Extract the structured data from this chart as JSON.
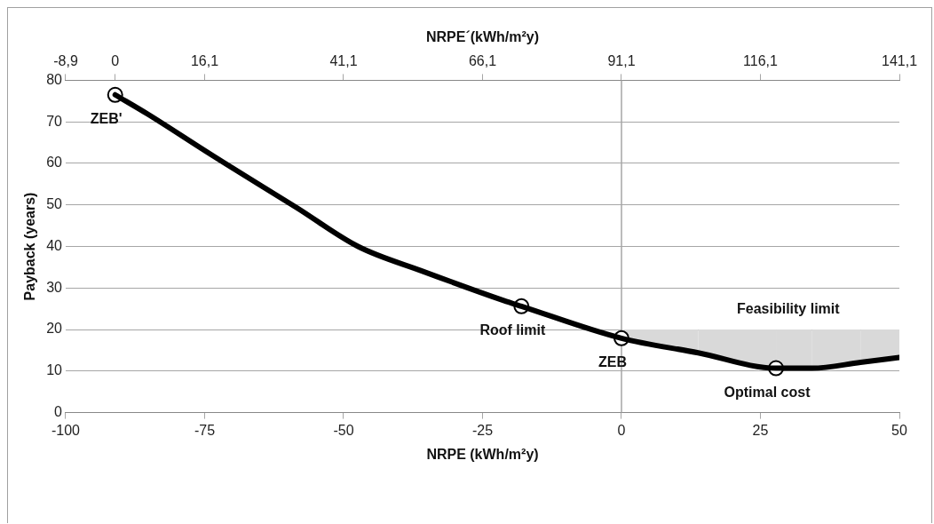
{
  "chart_data": {
    "type": "line",
    "xlabel": "NRPE (kWh/m²y)",
    "ylabel": "Payback (years)",
    "x2label": "NRPE´(kWh/m²y)",
    "xlim": [
      -100,
      50
    ],
    "xticks": [
      -100,
      -75,
      -50,
      -25,
      0,
      25,
      50
    ],
    "x2lim": [
      -8.9,
      141.1
    ],
    "x2ticks": [
      {
        "value": -8.9,
        "label": "-8,9"
      },
      {
        "value": 0,
        "label": "0"
      },
      {
        "value": 16.1,
        "label": "16,1"
      },
      {
        "value": 41.1,
        "label": "41,1"
      },
      {
        "value": 66.1,
        "label": "66,1"
      },
      {
        "value": 91.1,
        "label": "91,1"
      },
      {
        "value": 116.1,
        "label": "116,1"
      },
      {
        "value": 141.1,
        "label": "141,1"
      }
    ],
    "ylim": [
      0,
      80
    ],
    "yticks": [
      0,
      10,
      20,
      30,
      40,
      50,
      60,
      70,
      80
    ],
    "grid": "y",
    "line_style": "solid",
    "series": [
      {
        "color": "#000000",
        "marker": "none",
        "x": [
          -91.1,
          -85.3,
          -73.6,
          -58.4,
          -47.4,
          -35.7,
          -21.2,
          -18,
          0,
          13.8,
          27.8,
          34.3,
          43,
          50
        ],
        "values": [
          76.5,
          71.9,
          61.9,
          49.3,
          40,
          34,
          27,
          25.6,
          17.9,
          14.4,
          10.7,
          10.7,
          12.1,
          13.3
        ],
        "lower": [
          null,
          null,
          null,
          null,
          null,
          null,
          null,
          null,
          17.9,
          14.4,
          10.7,
          10.7,
          12.1,
          13.3
        ],
        "upper": [
          null,
          null,
          null,
          null,
          null,
          null,
          null,
          null,
          20,
          20,
          20,
          20,
          20,
          20
        ]
      },
      {
        "type": "scatter",
        "color": "#000000",
        "marker": "circle",
        "x": [
          -91.1,
          -18,
          0,
          27.8
        ],
        "values": [
          76.5,
          25.6,
          17.9,
          10.7
        ]
      }
    ],
    "ref_lines": [
      {
        "axis": "x",
        "value": 0,
        "color": "#a6a6a6"
      }
    ],
    "annotations": [
      {
        "text": "ZEB'",
        "x": -91.1,
        "y": 76.5
      },
      {
        "text": "Roof limit",
        "x": -18,
        "y": 25.6
      },
      {
        "text": "ZEB",
        "x": 0,
        "y": 17.9
      },
      {
        "text": "Optimal cost",
        "x": 27.8,
        "y": 10.7
      },
      {
        "text": "Feasibility limit",
        "x": 30,
        "y": 20
      }
    ]
  }
}
